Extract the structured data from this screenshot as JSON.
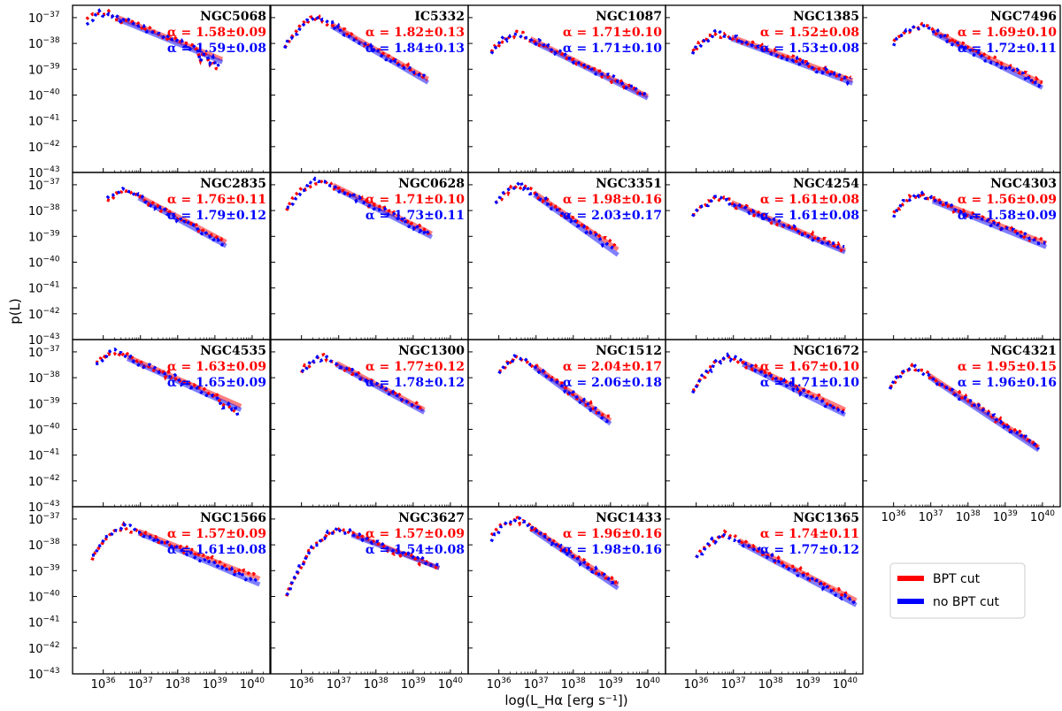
{
  "colors": {
    "bpt_cut": "#ff0000",
    "no_bpt_cut": "#0000ff",
    "frame": "#000000"
  },
  "ylabel": "p(L)",
  "xlabel": "log(L_Hα [erg s⁻¹])",
  "legend": {
    "placement": "bottom-right",
    "entries": [
      "BPT cut",
      "no BPT cut"
    ]
  },
  "chart_data": {
    "type": "line",
    "xscale": "log",
    "yscale": "log",
    "xlim": [
      1.5e+35,
      3e+40
    ],
    "ylim": [
      1e-43,
      3e-37
    ],
    "x_ticks": [
      "10^36",
      "10^37",
      "10^38",
      "10^39",
      "10^40"
    ],
    "y_ticks": [
      "10^-37",
      "10^-38",
      "10^-39",
      "10^-40",
      "10^-41",
      "10^-42",
      "10^-43"
    ],
    "series_names": [
      "BPT cut",
      "no BPT cut"
    ],
    "panels": [
      {
        "name": "NGC5068",
        "alpha_red": "α = 1.58±0.09",
        "alpha_blue": "α = 1.59±0.08",
        "a_red": 1.58,
        "a_blue": 1.59,
        "peak_x": 36.0,
        "peak_y": -36.8,
        "start_x": 35.55,
        "end_x": 39.2,
        "dip": 1
      },
      {
        "name": "IC5332",
        "alpha_red": "α = 1.82±0.13",
        "alpha_blue": "α = 1.84±0.13",
        "a_red": 1.82,
        "a_blue": 1.84,
        "peak_x": 36.45,
        "peak_y": -37.0,
        "start_x": 35.55,
        "end_x": 39.4,
        "dip": 0
      },
      {
        "name": "NGC1087",
        "alpha_red": "α = 1.71±0.10",
        "alpha_blue": "α = 1.71±0.10",
        "a_red": 1.71,
        "a_blue": 1.71,
        "peak_x": 36.5,
        "peak_y": -37.6,
        "start_x": 35.8,
        "end_x": 40.0,
        "dip": 0
      },
      {
        "name": "NGC1385",
        "alpha_red": "α = 1.52±0.08",
        "alpha_blue": "α = 1.53±0.08",
        "a_red": 1.52,
        "a_blue": 1.53,
        "peak_x": 36.6,
        "peak_y": -37.6,
        "start_x": 35.9,
        "end_x": 40.2,
        "dip": 0
      },
      {
        "name": "NGC7496",
        "alpha_red": "α = 1.69±0.10",
        "alpha_blue": "α = 1.72±0.11",
        "a_red": 1.69,
        "a_blue": 1.72,
        "peak_x": 36.7,
        "peak_y": -37.3,
        "start_x": 36.0,
        "end_x": 40.0,
        "dip": 0
      },
      {
        "name": "NGC2835",
        "alpha_red": "α = 1.76±0.11",
        "alpha_blue": "α = 1.79±0.12",
        "a_red": 1.76,
        "a_blue": 1.79,
        "peak_x": 36.6,
        "peak_y": -37.2,
        "start_x": 36.1,
        "end_x": 39.3,
        "dip": 0
      },
      {
        "name": "NGC0628",
        "alpha_red": "α = 1.71±0.10",
        "alpha_blue": "α = 1.73±0.11",
        "a_red": 1.71,
        "a_blue": 1.73,
        "peak_x": 36.5,
        "peak_y": -36.8,
        "start_x": 35.6,
        "end_x": 39.5,
        "dip": 0
      },
      {
        "name": "NGC3351",
        "alpha_red": "α = 1.98±0.16",
        "alpha_blue": "α = 2.03±0.17",
        "a_red": 1.98,
        "a_blue": 2.03,
        "peak_x": 36.6,
        "peak_y": -37.0,
        "start_x": 35.9,
        "end_x": 39.2,
        "dip": 0
      },
      {
        "name": "NGC4254",
        "alpha_red": "α = 1.61±0.08",
        "alpha_blue": "α = 1.61±0.08",
        "a_red": 1.61,
        "a_blue": 1.61,
        "peak_x": 36.6,
        "peak_y": -37.5,
        "start_x": 35.9,
        "end_x": 40.0,
        "dip": 0
      },
      {
        "name": "NGC4303",
        "alpha_red": "α = 1.56±0.09",
        "alpha_blue": "α = 1.58±0.09",
        "a_red": 1.56,
        "a_blue": 1.58,
        "peak_x": 36.7,
        "peak_y": -37.4,
        "start_x": 36.0,
        "end_x": 40.1,
        "dip": 0
      },
      {
        "name": "NGC4535",
        "alpha_red": "α = 1.63±0.09",
        "alpha_blue": "α = 1.65±0.09",
        "a_red": 1.63,
        "a_blue": 1.65,
        "peak_x": 36.3,
        "peak_y": -37.0,
        "start_x": 35.8,
        "end_x": 39.7,
        "dip": 1
      },
      {
        "name": "NGC1300",
        "alpha_red": "α = 1.77±0.12",
        "alpha_blue": "α = 1.78±0.12",
        "a_red": 1.77,
        "a_blue": 1.78,
        "peak_x": 36.6,
        "peak_y": -37.2,
        "start_x": 36.0,
        "end_x": 39.3,
        "dip": 0
      },
      {
        "name": "NGC1512",
        "alpha_red": "α = 2.04±0.17",
        "alpha_blue": "α = 2.06±0.18",
        "a_red": 2.04,
        "a_blue": 2.06,
        "peak_x": 36.6,
        "peak_y": -37.2,
        "start_x": 36.0,
        "end_x": 39.0,
        "dip": 0
      },
      {
        "name": "NGC1672",
        "alpha_red": "α = 1.67±0.10",
        "alpha_blue": "α = 1.71±0.10",
        "a_red": 1.67,
        "a_blue": 1.71,
        "peak_x": 36.9,
        "peak_y": -37.2,
        "start_x": 35.9,
        "end_x": 40.0,
        "dip": 0
      },
      {
        "name": "NGC4321",
        "alpha_red": "α = 1.95±0.15",
        "alpha_blue": "α = 1.96±0.16",
        "a_red": 1.95,
        "a_blue": 1.96,
        "peak_x": 36.6,
        "peak_y": -37.6,
        "start_x": 35.9,
        "end_x": 39.9,
        "dip": 0
      },
      {
        "name": "NGC1566",
        "alpha_red": "α = 1.57±0.09",
        "alpha_blue": "α = 1.61±0.08",
        "a_red": 1.57,
        "a_blue": 1.61,
        "peak_x": 36.6,
        "peak_y": -37.3,
        "start_x": 35.7,
        "end_x": 40.2,
        "dip": 0
      },
      {
        "name": "NGC3627",
        "alpha_red": "α = 1.57±0.09",
        "alpha_blue": "α = 1.54±0.08",
        "a_red": 1.57,
        "a_blue": 1.54,
        "peak_x": 37.0,
        "peak_y": -37.4,
        "start_x": 35.6,
        "end_x": 39.7,
        "dip": 0
      },
      {
        "name": "NGC1433",
        "alpha_red": "α = 1.96±0.16",
        "alpha_blue": "α = 1.98±0.16",
        "a_red": 1.96,
        "a_blue": 1.98,
        "peak_x": 36.5,
        "peak_y": -37.0,
        "start_x": 35.8,
        "end_x": 39.2,
        "dip": 0
      },
      {
        "name": "NGC1365",
        "alpha_red": "α = 1.74±0.11",
        "alpha_blue": "α = 1.77±0.12",
        "a_red": 1.74,
        "a_blue": 1.77,
        "peak_x": 36.8,
        "peak_y": -37.6,
        "start_x": 36.0,
        "end_x": 40.3,
        "dip": 0
      }
    ]
  }
}
